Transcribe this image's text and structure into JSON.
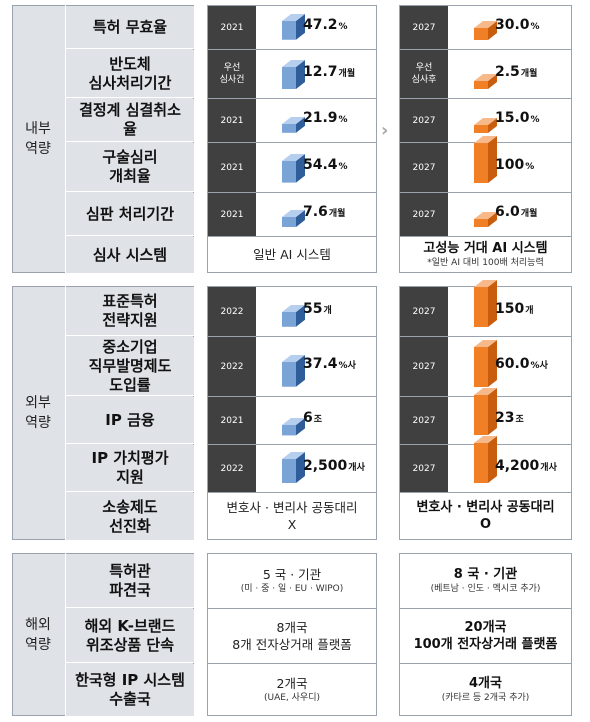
{
  "colors": {
    "blue_front": "#7aa3d6",
    "blue_top": "#b7cfee",
    "blue_side": "#2e5d9a",
    "orange_front": "#f07f26",
    "orange_top": "#f7b98a",
    "orange_side": "#c75d0d",
    "label_bg": "#dfe3e8",
    "year_bg": "#404040"
  },
  "arrow_glyph": "›",
  "sections": [
    {
      "label": "내부\n역량",
      "rows": [
        {
          "label": "특허 무효율",
          "left": {
            "year": "2021",
            "value": "47.2",
            "unit": "%",
            "level": 0.47
          },
          "right": {
            "year": "2027",
            "value": "30.0",
            "unit": "%",
            "level": 0.3
          }
        },
        {
          "label": "반도체\n심사처리기간",
          "left": {
            "year": "우선\n심사건",
            "value": "12.7",
            "unit": "개월",
            "level": 0.55
          },
          "right": {
            "year": "우선\n심사후",
            "value": "2.5",
            "unit": "개월",
            "level": 0.1
          }
        },
        {
          "label": "결정계 심결취소\n율",
          "left": {
            "year": "2021",
            "value": "21.9",
            "unit": "%",
            "level": 0.22
          },
          "right": {
            "year": "2027",
            "value": "15.0",
            "unit": "%",
            "level": 0.15
          }
        },
        {
          "label": "구술심리\n개최율",
          "left": {
            "year": "2021",
            "value": "54.4",
            "unit": "%",
            "level": 0.54
          },
          "right": {
            "year": "2027",
            "value": "100",
            "unit": "%",
            "level": 1.0
          }
        },
        {
          "label": "심판 처리기간",
          "left": {
            "year": "2021",
            "value": "7.6",
            "unit": "개월",
            "level": 0.25
          },
          "right": {
            "year": "2027",
            "value": "6.0",
            "unit": "개월",
            "level": 0.2
          }
        },
        {
          "label": "심사 시스템",
          "left_text": "일반 AI 시스템",
          "right_text": "고성능 거대 AI 시스템",
          "right_note": "*일반 AI 대비 100배 처리능력"
        }
      ]
    },
    {
      "label": "외부\n역량",
      "rows": [
        {
          "label": "표준특허\n전략지원",
          "left": {
            "year": "2022",
            "value": "55",
            "unit": "개",
            "level": 0.37
          },
          "right": {
            "year": "2027",
            "value": "150",
            "unit": "개",
            "level": 1.0
          }
        },
        {
          "label": "중소기업\n직무발명제도\n도입률",
          "left": {
            "year": "2022",
            "value": "37.4",
            "unit": "%사",
            "level": 0.62
          },
          "right": {
            "year": "2027",
            "value": "60.0",
            "unit": "%사",
            "level": 1.0
          }
        },
        {
          "label": "IP 금융",
          "left": {
            "year": "2021",
            "value": "6",
            "unit": "조",
            "level": 0.26
          },
          "right": {
            "year": "2027",
            "value": "23",
            "unit": "조",
            "level": 1.0
          }
        },
        {
          "label": "IP 가치평가\n지원",
          "left": {
            "year": "2022",
            "value": "2,500",
            "unit": "개사",
            "level": 0.6
          },
          "right": {
            "year": "2027",
            "value": "4,200",
            "unit": "개사",
            "level": 1.0
          }
        },
        {
          "label": "소송제도\n선진화",
          "left_text": "변호사 · 변리사 공동대리\nX",
          "right_text": "변호사 · 변리사 공동대리\nO"
        }
      ]
    },
    {
      "label": "해외\n역량",
      "rows": [
        {
          "label": "특허관\n파견국",
          "left_text": "5 국 · 기관",
          "left_sub": "(미 · 중 · 일 · EU · WIPO)",
          "right_text": "8 국 · 기관",
          "right_sub": "(베트남 · 인도 · 멕시코 추가)"
        },
        {
          "label": "해외 K-브랜드\n위조상품 단속",
          "left_text": "8개국\n8개 전자상거래 플랫폼",
          "right_text": "20개국\n100개 전자상거래 플랫폼"
        },
        {
          "label": "한국형 IP 시스템\n수출국",
          "left_text": "2개국",
          "left_sub": "(UAE, 사우디)",
          "right_text": "4개국",
          "right_sub": "(카타르 등 2개국 추가)"
        }
      ]
    }
  ]
}
